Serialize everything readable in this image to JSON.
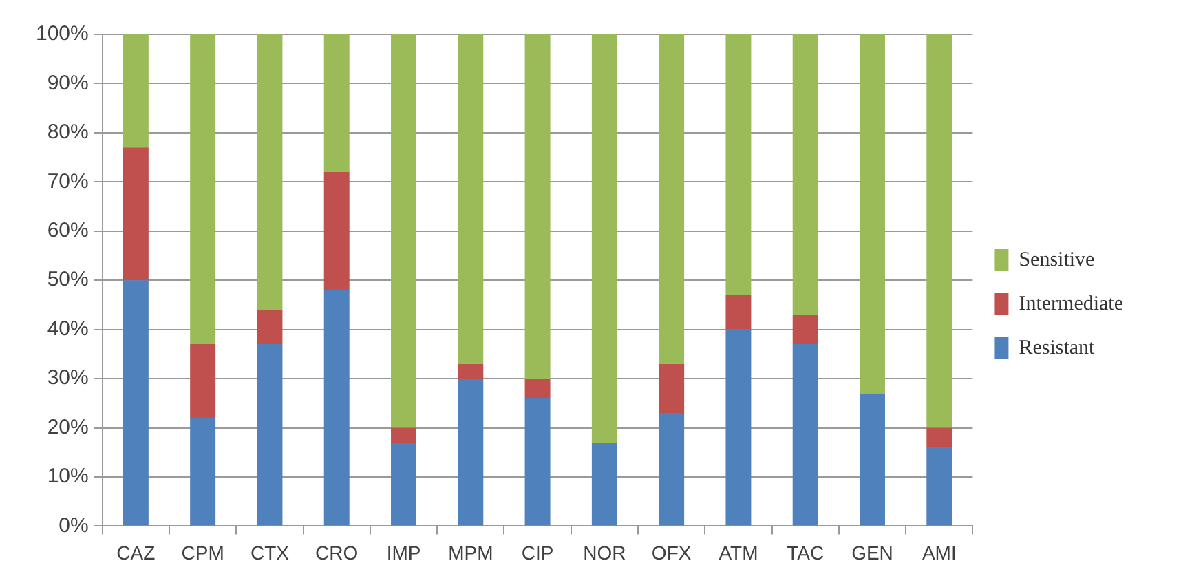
{
  "chart_data": {
    "type": "bar",
    "stacked": true,
    "categories": [
      "CAZ",
      "CPM",
      "CTX",
      "CRO",
      "IMP",
      "MPM",
      "CIP",
      "NOR",
      "OFX",
      "ATM",
      "TAC",
      "GEN",
      "AMI"
    ],
    "series": [
      {
        "name": "Resistant",
        "color": "#4f81bd",
        "values": [
          50,
          22,
          37,
          48,
          17,
          30,
          26,
          17,
          23,
          40,
          37,
          27,
          16
        ]
      },
      {
        "name": "Intermediate",
        "color": "#c0504d",
        "values": [
          27,
          15,
          7,
          24,
          3,
          3,
          4,
          0,
          10,
          7,
          6,
          0,
          4
        ]
      },
      {
        "name": "Sensitive",
        "color": "#9bbb59",
        "values": [
          23,
          63,
          56,
          28,
          80,
          67,
          70,
          83,
          67,
          53,
          57,
          73,
          80
        ]
      }
    ],
    "ylim": [
      0,
      100
    ],
    "yticks": [
      {
        "value": 0,
        "label": "0%"
      },
      {
        "value": 10,
        "label": "10%"
      },
      {
        "value": 20,
        "label": "20%"
      },
      {
        "value": 30,
        "label": "30%"
      },
      {
        "value": 40,
        "label": "40%"
      },
      {
        "value": 50,
        "label": "50%"
      },
      {
        "value": 60,
        "label": "60%"
      },
      {
        "value": 70,
        "label": "70%"
      },
      {
        "value": 80,
        "label": "80%"
      },
      {
        "value": 90,
        "label": "90%"
      },
      {
        "value": 100,
        "label": "100%"
      }
    ],
    "grid": "y",
    "legend": "right"
  }
}
